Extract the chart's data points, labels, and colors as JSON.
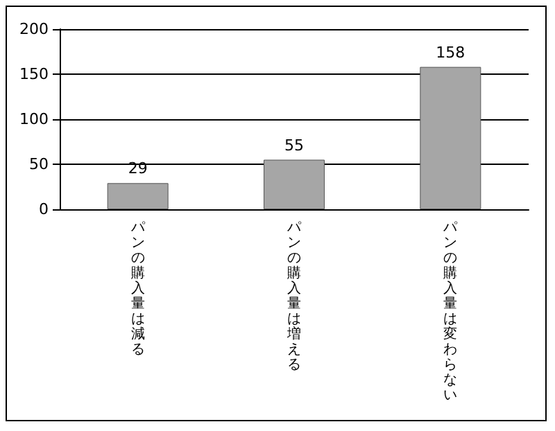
{
  "chart_data": {
    "type": "bar",
    "categories": [
      "パンの購入量は減る",
      "パンの購入量は増える",
      "パンの購入量は変わらない"
    ],
    "values": [
      29,
      55,
      158
    ],
    "color": "#a6a6a6",
    "ylim": [
      0,
      200
    ],
    "yticks": [
      0,
      50,
      100,
      150,
      200
    ],
    "grid": "y",
    "data_labels": true
  }
}
